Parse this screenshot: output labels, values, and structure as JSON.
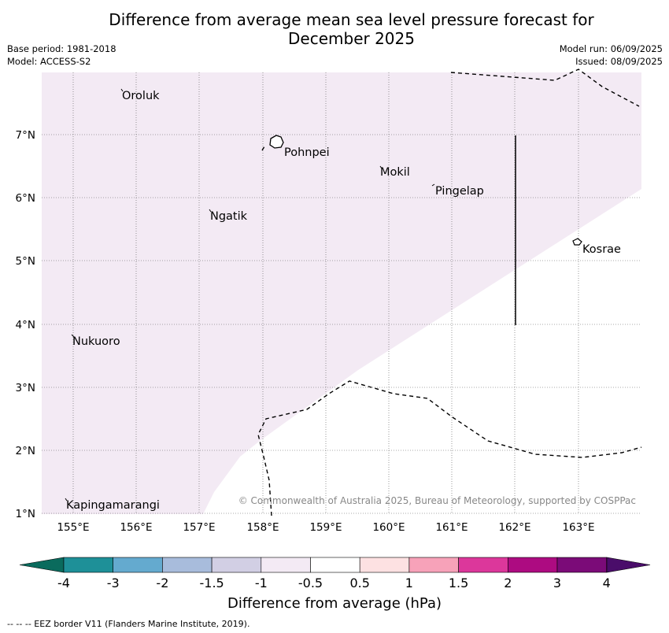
{
  "header": {
    "title_line1": "Difference from average mean sea level pressure forecast for",
    "title_line2": "December 2025",
    "base_period": "Base period: 1981-2018",
    "model": "Model: ACCESS-S2",
    "model_run": "Model run: 06/09/2025",
    "issued": "Issued: 08/09/2025"
  },
  "map": {
    "lon_labels": [
      "155°E",
      "156°E",
      "157°E",
      "158°E",
      "159°E",
      "160°E",
      "161°E",
      "162°E",
      "163°E"
    ],
    "lat_labels": [
      "7°N",
      "6°N",
      "5°N",
      "4°N",
      "3°N",
      "2°N",
      "1°N"
    ],
    "places": [
      {
        "name": "Oroluk",
        "lon": 155.75,
        "lat": 7.7
      },
      {
        "name": "Pohnpei",
        "lon": 158.3,
        "lat": 6.85
      },
      {
        "name": "Mokil",
        "lon": 159.85,
        "lat": 6.5
      },
      {
        "name": "Pingelap",
        "lon": 160.75,
        "lat": 6.2
      },
      {
        "name": "Ngatik",
        "lon": 157.15,
        "lat": 5.8
      },
      {
        "name": "Kosrae",
        "lon": 163.0,
        "lat": 5.3
      },
      {
        "name": "Nukuoro",
        "lon": 154.95,
        "lat": 3.85
      },
      {
        "name": "Kapingamarangi",
        "lon": 154.85,
        "lat": 1.25
      }
    ],
    "shaded_category": "-0.5 to -1",
    "shade_color": "#f3eaf4",
    "copyright": "© Commonwealth of Australia 2025, Bureau of Meteorology, supported by COSPPac"
  },
  "colorbar": {
    "labels": [
      "-4",
      "-3",
      "-2",
      "-1.5",
      "-1",
      "-0.5",
      "0.5",
      "1",
      "1.5",
      "2",
      "3",
      "4"
    ],
    "colors": [
      "#1e9098",
      "#64aacf",
      "#a8bcdc",
      "#d2cfe4",
      "#f3eaf4",
      "#ffffff",
      "#fde1e2",
      "#f7a2b9",
      "#dc379b",
      "#ad0b81",
      "#7b0b78"
    ],
    "min_color": "#0a6b5d",
    "max_color": "#4a0d6a",
    "label": "Difference from average (hPa)"
  },
  "footer": "--  --  -- EEZ border V11 (Flanders Marine Institute, 2019)."
}
